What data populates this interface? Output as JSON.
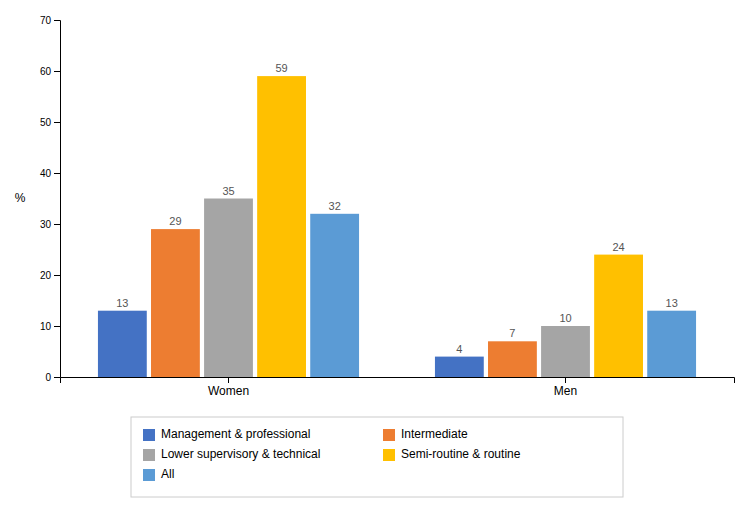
{
  "chart_data": {
    "type": "bar",
    "categories": [
      "Women",
      "Men"
    ],
    "series": [
      {
        "name": "Management & professional",
        "color": "#4472C4",
        "values": [
          13,
          4
        ]
      },
      {
        "name": "Intermediate",
        "color": "#ED7D31",
        "values": [
          29,
          7
        ]
      },
      {
        "name": "Lower supervisory & technical",
        "color": "#A5A5A5",
        "values": [
          35,
          10
        ]
      },
      {
        "name": "Semi-routine & routine",
        "color": "#FFC000",
        "values": [
          59,
          24
        ]
      },
      {
        "name": "All",
        "color": "#5B9BD5",
        "values": [
          32,
          13
        ]
      }
    ],
    "ylabel": "%",
    "ylim": [
      0,
      70
    ],
    "yticks": [
      0,
      10,
      20,
      30,
      40,
      50,
      60,
      70
    ],
    "grid": false,
    "legend": "bottom",
    "data_labels": true
  }
}
